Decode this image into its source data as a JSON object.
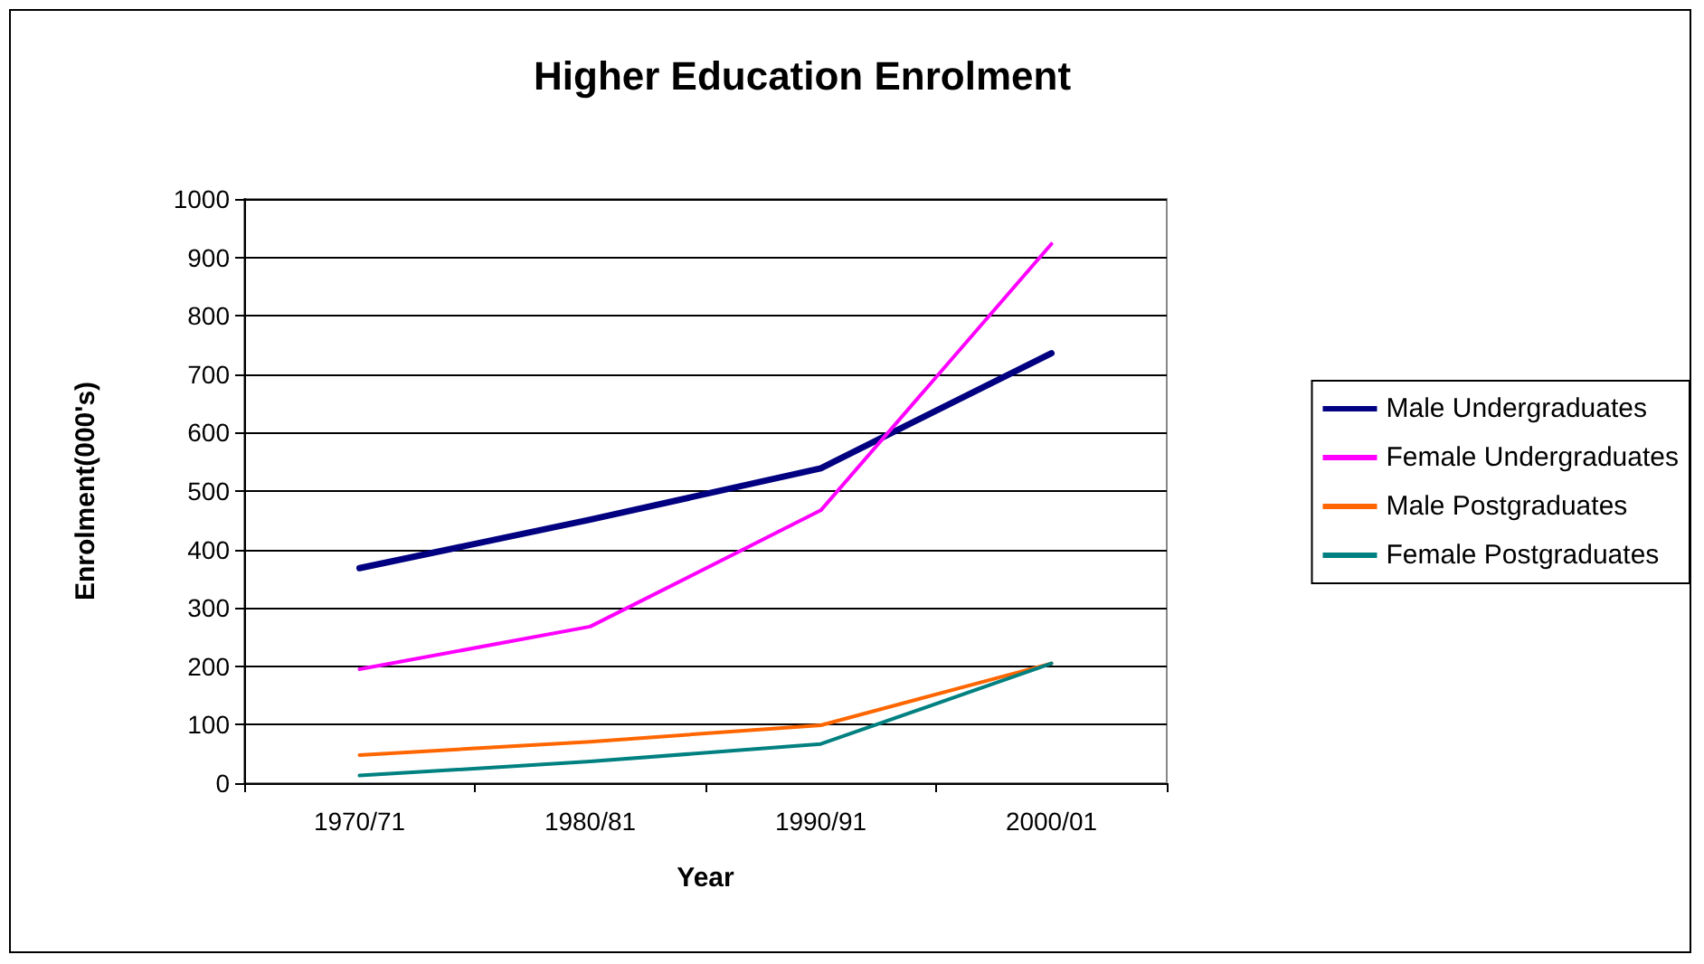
{
  "chart_data": {
    "type": "line",
    "title": "Higher Education Enrolment",
    "xlabel": "Year",
    "ylabel": "Enrolment(000's)",
    "categories": [
      "1970/71",
      "1980/81",
      "1990/91",
      "2000/01"
    ],
    "series": [
      {
        "name": "Male Undergraduates",
        "color": "#000080",
        "values": [
          368,
          451,
          539,
          736
        ]
      },
      {
        "name": "Female Undergraduates",
        "color": "#ff00ff",
        "values": [
          195,
          268,
          467,
          923
        ]
      },
      {
        "name": "Male Postgraduates",
        "color": "#ff6600",
        "values": [
          48,
          71,
          99,
          205
        ]
      },
      {
        "name": "Female Postgraduates",
        "color": "#008080",
        "values": [
          13,
          37,
          67,
          205
        ]
      }
    ],
    "ylim": [
      0,
      1000
    ],
    "yticks": [
      0,
      100,
      200,
      300,
      400,
      500,
      600,
      700,
      800,
      900,
      1000
    ],
    "grid": "y",
    "legend": "right",
    "marker": "none",
    "line_style": "solid"
  }
}
